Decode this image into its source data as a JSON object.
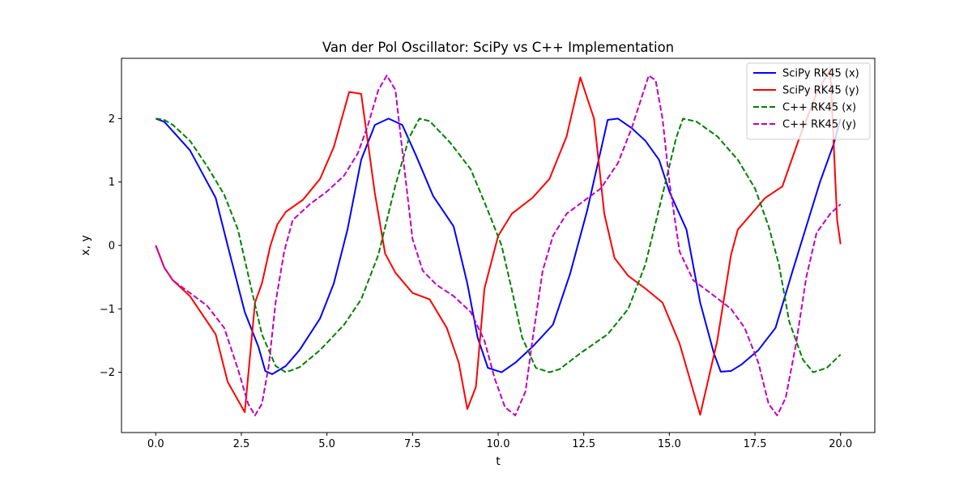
{
  "chart_data": {
    "type": "line",
    "title": "Van der Pol Oscillator: SciPy vs C++ Implementation",
    "xlabel": "t",
    "ylabel": "x, y",
    "xlim": [
      -1.0,
      21.0
    ],
    "ylim": [
      -2.95,
      2.95
    ],
    "xticks": [
      0.0,
      2.5,
      5.0,
      7.5,
      10.0,
      12.5,
      15.0,
      17.5,
      20.0
    ],
    "xtick_labels": [
      "0.0",
      "2.5",
      "5.0",
      "7.5",
      "10.0",
      "12.5",
      "15.0",
      "17.5",
      "20.0"
    ],
    "yticks": [
      -2,
      -1,
      0,
      1,
      2
    ],
    "ytick_labels": [
      "−2",
      "−1",
      "0",
      "1",
      "2"
    ],
    "grid": false,
    "legend_position": "top-right",
    "series": [
      {
        "name": "SciPy RK45 (x)",
        "color": "#0000ff",
        "style": "solid",
        "x": [
          0,
          0.25,
          0.5,
          1.0,
          1.75,
          2.1,
          2.6,
          3.0,
          3.2,
          3.4,
          3.8,
          4.2,
          4.8,
          5.2,
          5.6,
          6.0,
          6.4,
          6.8,
          7.2,
          7.6,
          8.1,
          8.7,
          9.1,
          9.4,
          9.7,
          10.1,
          10.5,
          11.0,
          11.6,
          12.1,
          12.6,
          13.2,
          13.5,
          13.9,
          14.3,
          14.7,
          15.0,
          15.5,
          15.9,
          16.3,
          16.5,
          16.8,
          17.1,
          17.6,
          18.1,
          18.6,
          19.0,
          19.4,
          19.8,
          20.0
        ],
        "y": [
          2.0,
          1.95,
          1.8,
          1.5,
          0.75,
          0.0,
          -1.05,
          -1.6,
          -1.98,
          -2.03,
          -1.9,
          -1.65,
          -1.15,
          -0.6,
          0.25,
          1.35,
          1.9,
          2.0,
          1.9,
          1.42,
          0.78,
          0.3,
          -0.6,
          -1.45,
          -1.93,
          -2.0,
          -1.85,
          -1.6,
          -1.25,
          -0.45,
          0.55,
          1.98,
          2.0,
          1.85,
          1.65,
          1.35,
          0.85,
          0.25,
          -0.9,
          -1.7,
          -1.99,
          -1.98,
          -1.88,
          -1.65,
          -1.3,
          -0.4,
          0.3,
          1.0,
          1.6,
          2.0
        ]
      },
      {
        "name": "SciPy RK45 (y)",
        "color": "#ff0000",
        "style": "solid",
        "x": [
          0,
          0.25,
          0.5,
          1.0,
          1.75,
          2.1,
          2.6,
          2.9,
          3.1,
          3.35,
          3.55,
          3.8,
          4.3,
          4.8,
          5.2,
          5.65,
          6.0,
          6.4,
          6.7,
          7.0,
          7.5,
          8.0,
          8.5,
          8.85,
          9.1,
          9.35,
          9.6,
          10.0,
          10.4,
          11.0,
          11.5,
          12.0,
          12.4,
          12.8,
          13.1,
          13.4,
          13.8,
          14.3,
          14.8,
          15.3,
          15.9,
          16.4,
          16.8,
          17.0,
          17.4,
          17.8,
          18.3,
          18.8,
          19.3,
          19.7,
          19.9,
          20.0
        ],
        "y": [
          0.0,
          -0.35,
          -0.55,
          -0.8,
          -1.4,
          -2.15,
          -2.63,
          -0.9,
          -0.6,
          0.0,
          0.33,
          0.53,
          0.72,
          1.05,
          1.55,
          2.42,
          2.39,
          0.82,
          -0.13,
          -0.43,
          -0.75,
          -0.85,
          -1.3,
          -1.85,
          -2.58,
          -2.23,
          -0.68,
          0.15,
          0.5,
          0.75,
          1.05,
          1.72,
          2.65,
          2.0,
          0.5,
          -0.2,
          -0.48,
          -0.68,
          -0.9,
          -1.55,
          -2.67,
          -1.5,
          -0.15,
          0.25,
          0.5,
          0.75,
          0.93,
          1.7,
          2.4,
          2.78,
          0.4,
          0.02
        ]
      },
      {
        "name": "C++ RK45 (x)",
        "color": "#008000",
        "style": "dashed",
        "x": [
          0,
          0.25,
          0.5,
          1.0,
          1.5,
          2.0,
          2.4,
          2.8,
          3.1,
          3.5,
          3.8,
          4.2,
          4.8,
          5.5,
          6.0,
          6.5,
          7.0,
          7.4,
          7.7,
          8.0,
          8.6,
          9.2,
          9.7,
          10.1,
          10.4,
          10.7,
          11.1,
          11.5,
          11.8,
          12.4,
          13.2,
          13.8,
          14.3,
          14.8,
          15.2,
          15.4,
          15.8,
          16.4,
          17.0,
          17.5,
          17.9,
          18.2,
          18.5,
          18.9,
          19.2,
          19.6,
          20.0
        ],
        "y": [
          2.0,
          1.98,
          1.9,
          1.65,
          1.25,
          0.8,
          0.25,
          -0.7,
          -1.4,
          -1.9,
          -2.0,
          -1.92,
          -1.65,
          -1.25,
          -0.85,
          -0.15,
          0.95,
          1.7,
          2.0,
          1.96,
          1.62,
          1.2,
          0.55,
          0.0,
          -0.7,
          -1.45,
          -1.93,
          -2.0,
          -1.95,
          -1.7,
          -1.4,
          -1.0,
          -0.3,
          0.8,
          1.7,
          2.0,
          1.95,
          1.72,
          1.35,
          0.9,
          0.3,
          -0.3,
          -1.2,
          -1.8,
          -2.0,
          -1.93,
          -1.72
        ]
      },
      {
        "name": "C++ RK45 (y)",
        "color": "#bf00bf",
        "style": "dashed",
        "x": [
          0,
          0.25,
          0.5,
          1.0,
          1.5,
          2.0,
          2.4,
          2.7,
          2.9,
          3.1,
          3.3,
          3.5,
          3.75,
          4.0,
          4.5,
          5.0,
          5.5,
          5.9,
          6.2,
          6.5,
          6.75,
          7.0,
          7.2,
          7.5,
          7.8,
          8.2,
          8.7,
          9.2,
          9.6,
          9.9,
          10.2,
          10.5,
          10.8,
          11.0,
          11.3,
          11.6,
          12.0,
          12.5,
          13.0,
          13.5,
          13.9,
          14.2,
          14.4,
          14.6,
          14.8,
          15.0,
          15.3,
          15.7,
          16.2,
          16.8,
          17.2,
          17.6,
          17.9,
          18.15,
          18.4,
          18.7,
          19.0,
          19.3,
          19.7,
          20.0
        ],
        "y": [
          0.0,
          -0.35,
          -0.55,
          -0.75,
          -0.95,
          -1.3,
          -1.95,
          -2.5,
          -2.68,
          -2.5,
          -1.9,
          -0.9,
          -0.1,
          0.4,
          0.65,
          0.85,
          1.1,
          1.45,
          1.9,
          2.45,
          2.68,
          2.45,
          1.5,
          0.1,
          -0.4,
          -0.62,
          -0.8,
          -1.05,
          -1.5,
          -2.1,
          -2.55,
          -2.68,
          -2.3,
          -1.5,
          -0.4,
          0.15,
          0.5,
          0.7,
          0.9,
          1.3,
          1.85,
          2.35,
          2.68,
          2.6,
          2.0,
          1.0,
          -0.1,
          -0.55,
          -0.75,
          -1.0,
          -1.3,
          -1.85,
          -2.5,
          -2.68,
          -2.4,
          -1.55,
          -0.5,
          0.2,
          0.5,
          0.65
        ]
      }
    ]
  }
}
